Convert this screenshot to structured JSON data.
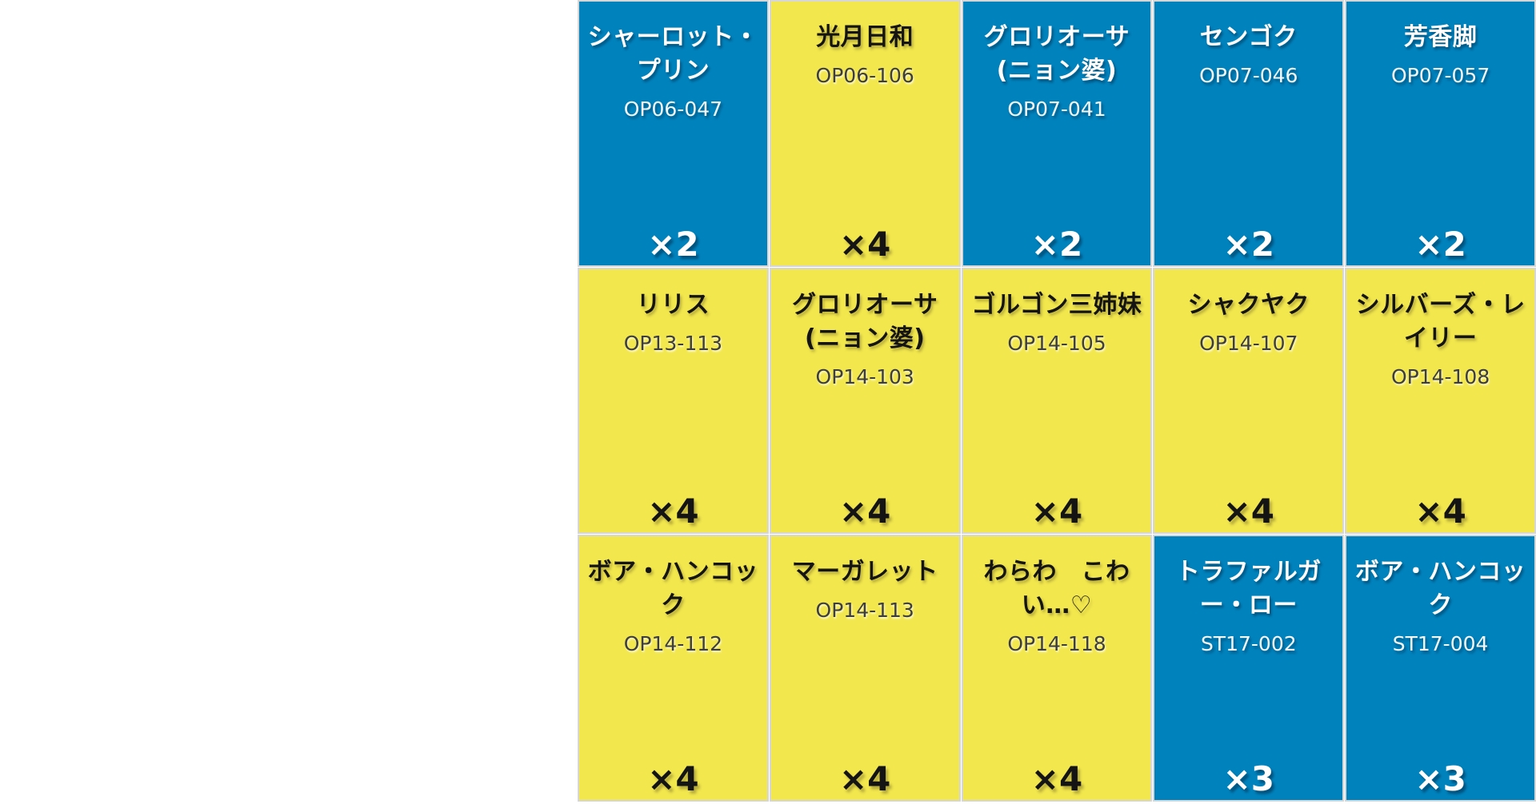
{
  "page": {
    "background_color": "#ffffff"
  },
  "deck": {
    "colors": {
      "blue": "#0083bd",
      "yellow": "#f2e74d",
      "card_border": "#d6d6d6",
      "text_on_blue": "#ffffff",
      "text_on_yellow": "#141414",
      "id_on_yellow": "#3d3d3d"
    },
    "grid": {
      "columns": 5,
      "rows": 3
    },
    "cards": [
      {
        "name": "シャーロット・プリン",
        "id": "OP06-047",
        "count": "×2",
        "color": "blue"
      },
      {
        "name": "光月日和",
        "id": "OP06-106",
        "count": "×4",
        "color": "yellow"
      },
      {
        "name": "グロリオーサ(ニョン婆)",
        "id": "OP07-041",
        "count": "×2",
        "color": "blue"
      },
      {
        "name": "センゴク",
        "id": "OP07-046",
        "count": "×2",
        "color": "blue"
      },
      {
        "name": "芳香脚",
        "id": "OP07-057",
        "count": "×2",
        "color": "blue"
      },
      {
        "name": "リリス",
        "id": "OP13-113",
        "count": "×4",
        "color": "yellow"
      },
      {
        "name": "グロリオーサ(ニョン婆)",
        "id": "OP14-103",
        "count": "×4",
        "color": "yellow"
      },
      {
        "name": "ゴルゴン三姉妹",
        "id": "OP14-105",
        "count": "×4",
        "color": "yellow"
      },
      {
        "name": "シャクヤク",
        "id": "OP14-107",
        "count": "×4",
        "color": "yellow"
      },
      {
        "name": "シルバーズ・レイリー",
        "id": "OP14-108",
        "count": "×4",
        "color": "yellow"
      },
      {
        "name": "ボア・ハンコック",
        "id": "OP14-112",
        "count": "×4",
        "color": "yellow"
      },
      {
        "name": "マーガレット",
        "id": "OP14-113",
        "count": "×4",
        "color": "yellow"
      },
      {
        "name": "わらわ　こわい…♡",
        "id": "OP14-118",
        "count": "×4",
        "color": "yellow"
      },
      {
        "name": "トラファルガー・ロー",
        "id": "ST17-002",
        "count": "×3",
        "color": "blue"
      },
      {
        "name": "ボア・ハンコック",
        "id": "ST17-004",
        "count": "×3",
        "color": "blue"
      }
    ]
  }
}
